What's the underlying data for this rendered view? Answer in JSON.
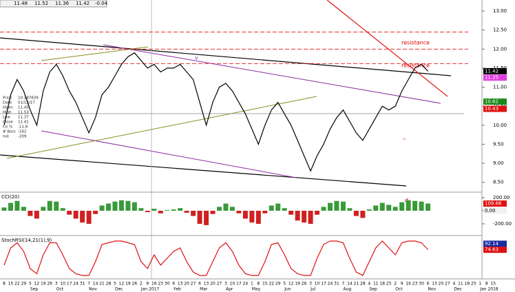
{
  "quote": {
    "open": 11.48,
    "high": 11.52,
    "low": 11.36,
    "close": 11.42,
    "change": -0.04
  },
  "info": [
    [
      "Price",
      "10.287839"
    ],
    [
      "Date",
      "01/13/17"
    ],
    [
      "Open",
      "11.45"
    ],
    [
      "High",
      "11.53"
    ],
    [
      "Low",
      "11.37"
    ],
    [
      "Close",
      "11.41"
    ],
    [
      "Ce %",
      "-11.8"
    ],
    [
      "# Bars",
      "-162"
    ],
    [
      "Ind",
      "-209"
    ]
  ],
  "chart_data": [
    {
      "type": "line",
      "ylim": [
        8.26,
        13.29
      ],
      "yticks": [
        {
          "value": 8.5,
          "label": "8.50"
        },
        {
          "value": 9,
          "label": "9.00"
        },
        {
          "value": 9.5,
          "label": "9.50"
        },
        {
          "value": 10,
          "label": "10.00"
        },
        {
          "value": 10.5,
          "label": "10.50"
        },
        {
          "value": 11,
          "label": "11.00"
        },
        {
          "value": 11.5,
          "label": "11.50"
        },
        {
          "value": 12,
          "label": "12.00"
        },
        {
          "value": 12.5,
          "label": "12.50"
        },
        {
          "value": 13,
          "label": "13.00"
        }
      ],
      "series": [
        {
          "color": "#000000",
          "values": [
            10.0,
            10.8,
            11.2,
            10.9,
            10.4,
            10.0,
            10.9,
            11.4,
            11.6,
            11.3,
            10.9,
            10.6,
            10.2,
            9.8,
            10.2,
            10.8,
            11.0,
            11.3,
            11.6,
            11.8,
            11.9,
            11.7,
            11.5,
            11.6,
            11.4,
            11.5,
            11.5,
            11.6,
            11.4,
            11.2,
            10.6,
            10.0,
            10.6,
            11.0,
            11.1,
            10.9,
            10.6,
            10.3,
            9.9,
            9.5,
            10.0,
            10.4,
            10.6,
            10.3,
            10.0,
            9.6,
            9.2,
            8.8,
            9.2,
            9.5,
            9.9,
            10.2,
            10.4,
            10.1,
            9.8,
            9.6,
            9.9,
            10.2,
            10.5,
            10.4,
            10.5,
            10.9,
            11.2,
            11.5,
            11.6,
            11.42,
            null,
            null,
            null,
            null,
            null,
            null,
            null,
            null,
            null,
            null
          ]
        }
      ],
      "resistance_levels": [
        12.45,
        12.0,
        11.62
      ],
      "markers": [
        {
          "value": 11.42,
          "color": "#000000"
        },
        {
          "value": 11.25,
          "color": "#e040e0"
        },
        {
          "value": 10.62,
          "color": "#1a8a1a"
        },
        {
          "value": 10.43,
          "color": "#e01010"
        }
      ],
      "annotations": [
        "resistance",
        "resistance",
        "v",
        "^"
      ]
    },
    {
      "type": "bar",
      "title": "CCI(20)",
      "ylim": [
        -358,
        274
      ],
      "yticks": [
        {
          "value": 200,
          "label": "200.00"
        },
        {
          "value": 0,
          "label": "0.00"
        },
        {
          "value": -200,
          "label": "-200.00"
        }
      ],
      "colors": [
        "#3a9a3a",
        "#d02020"
      ],
      "series": [
        {
          "values": [
            50,
            120,
            150,
            60,
            -80,
            -120,
            60,
            150,
            140,
            40,
            -60,
            -120,
            -180,
            -200,
            -50,
            80,
            110,
            140,
            160,
            150,
            130,
            40,
            -20,
            30,
            -40,
            10,
            20,
            40,
            -30,
            -80,
            -200,
            -220,
            -50,
            60,
            110,
            60,
            -40,
            -120,
            -180,
            -200,
            -40,
            80,
            110,
            40,
            -60,
            -150,
            -180,
            -200,
            -60,
            60,
            120,
            150,
            140,
            40,
            -80,
            -110,
            20,
            80,
            120,
            90,
            60,
            130,
            160,
            150,
            140,
            110,
            null,
            null,
            null,
            null,
            null,
            null,
            null,
            null,
            null,
            null
          ]
        }
      ],
      "markers": [
        {
          "value": 109.66,
          "color": "#e01010"
        },
        {
          "value": 0,
          "label": "0.00",
          "color": "#f0f0f0"
        }
      ],
      "annotations": [
        "d"
      ]
    },
    {
      "type": "line",
      "title": "StochRSI(14,21(1),9)",
      "ylim": [
        0,
        100
      ],
      "series": [
        {
          "color": "#e01010",
          "values": [
            30,
            80,
            95,
            70,
            20,
            5,
            60,
            95,
            95,
            60,
            20,
            5,
            0,
            0,
            40,
            90,
            95,
            100,
            100,
            95,
            90,
            40,
            20,
            60,
            30,
            50,
            70,
            80,
            40,
            10,
            0,
            0,
            40,
            80,
            95,
            70,
            30,
            5,
            0,
            0,
            40,
            90,
            95,
            60,
            20,
            5,
            0,
            0,
            50,
            90,
            100,
            100,
            95,
            50,
            10,
            0,
            40,
            80,
            100,
            80,
            60,
            95,
            100,
            100,
            95,
            75,
            null,
            null,
            null,
            null,
            null,
            null,
            null,
            null,
            null,
            null
          ]
        }
      ],
      "markers": [
        {
          "value": 92.14,
          "color": "#1a2aa0"
        },
        {
          "value": 74.63,
          "color": "#e01010"
        }
      ],
      "categories": [
        "8",
        "15",
        "22",
        "29",
        "5",
        "12",
        "19",
        "26",
        "3",
        "10",
        "17",
        "24",
        "31",
        "7",
        "14",
        "21",
        "28",
        "5",
        "12",
        "19",
        "26",
        "2",
        "9",
        "16",
        "23",
        "30",
        "6",
        "13",
        "20",
        "27",
        "6",
        "13",
        "20",
        "27",
        "3",
        "10",
        "17",
        "24",
        "1",
        "8",
        "15",
        "22",
        "29",
        "5",
        "12",
        "19",
        "26",
        "3",
        "10",
        "17",
        "24",
        "31",
        "7",
        "14",
        "21",
        "28",
        "4",
        "11",
        "18",
        "25",
        "2",
        "9",
        "16",
        "23",
        "30",
        "6",
        "13",
        "20",
        "27",
        "4",
        "11",
        "18",
        "25",
        "1",
        "8",
        "15"
      ],
      "months": [
        null,
        null,
        null,
        null,
        "Sep",
        null,
        null,
        null,
        "Oct",
        null,
        null,
        null,
        null,
        "Nov",
        null,
        null,
        null,
        "Dec",
        null,
        null,
        null,
        "Jan 2017",
        null,
        null,
        null,
        null,
        "Feb",
        null,
        null,
        null,
        "Mar",
        null,
        null,
        null,
        "Apr",
        null,
        null,
        null,
        "May",
        null,
        null,
        null,
        null,
        "Jun",
        null,
        null,
        null,
        "Jul",
        null,
        null,
        null,
        null,
        "Aug",
        null,
        null,
        null,
        "Sep",
        null,
        null,
        null,
        "Oct",
        null,
        null,
        null,
        null,
        "Nov",
        null,
        null,
        null,
        "Dec",
        null,
        null,
        null,
        "Jan 2018",
        null,
        null
      ]
    }
  ]
}
